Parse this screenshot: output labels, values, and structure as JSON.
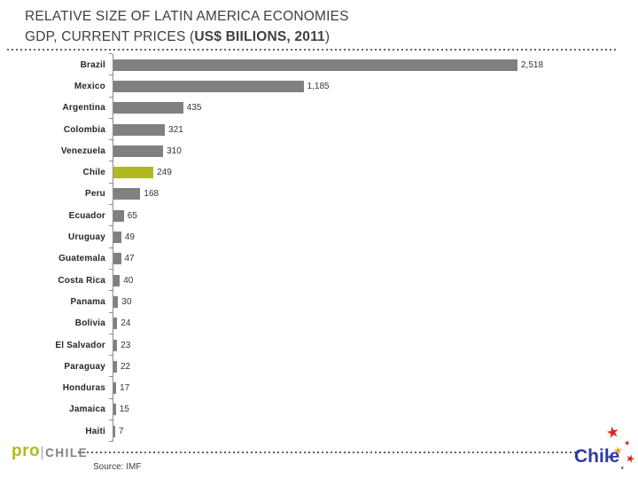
{
  "title": {
    "line1": "RELATIVE SIZE OF LATIN AMERICA ECONOMIES",
    "line2_prefix": "GDP, CURRENT PRICES (",
    "line2_em": "US$ BIILIONS, 2011",
    "line2_suffix": ")"
  },
  "chart_data": {
    "type": "bar",
    "orientation": "horizontal",
    "title": "RELATIVE SIZE OF LATIN AMERICA ECONOMIES",
    "subtitle": "GDP, CURRENT PRICES (US$ BIILIONS, 2011)",
    "unit": "US$ billions",
    "categories": [
      "Brazil",
      "Mexico",
      "Argentina",
      "Colombia",
      "Venezuela",
      "Chile",
      "Peru",
      "Ecuador",
      "Uruguay",
      "Guatemala",
      "Costa Rica",
      "Panama",
      "Bolivia",
      "El Salvador",
      "Paraguay",
      "Honduras",
      "Jamaica",
      "Haiti"
    ],
    "values": [
      2518,
      1185,
      435,
      321,
      310,
      249,
      168,
      65,
      49,
      47,
      40,
      30,
      24,
      23,
      22,
      17,
      15,
      7
    ],
    "value_labels": [
      "2,518",
      "1,185",
      "435",
      "321",
      "310",
      "249",
      "168",
      "65",
      "49",
      "47",
      "40",
      "30",
      "24",
      "23",
      "22",
      "17",
      "15",
      "7"
    ],
    "highlight_category": "Chile",
    "xlim": [
      0,
      2518
    ],
    "grid": false,
    "legend": false,
    "colors": {
      "bar": "#808080",
      "highlight": "#b0ba1e",
      "axis": "#8c8c8c"
    }
  },
  "footer": {
    "logo_pro": "pro",
    "logo_chile": "CHILE",
    "source": "Source: IMF",
    "brand": "Chile",
    "brand_color": "#2a3b9f",
    "star_colors": {
      "red": "#e0231c",
      "orange": "#f59b20",
      "blue": "#2a3b9f"
    }
  },
  "icons": {
    "star": "★"
  }
}
